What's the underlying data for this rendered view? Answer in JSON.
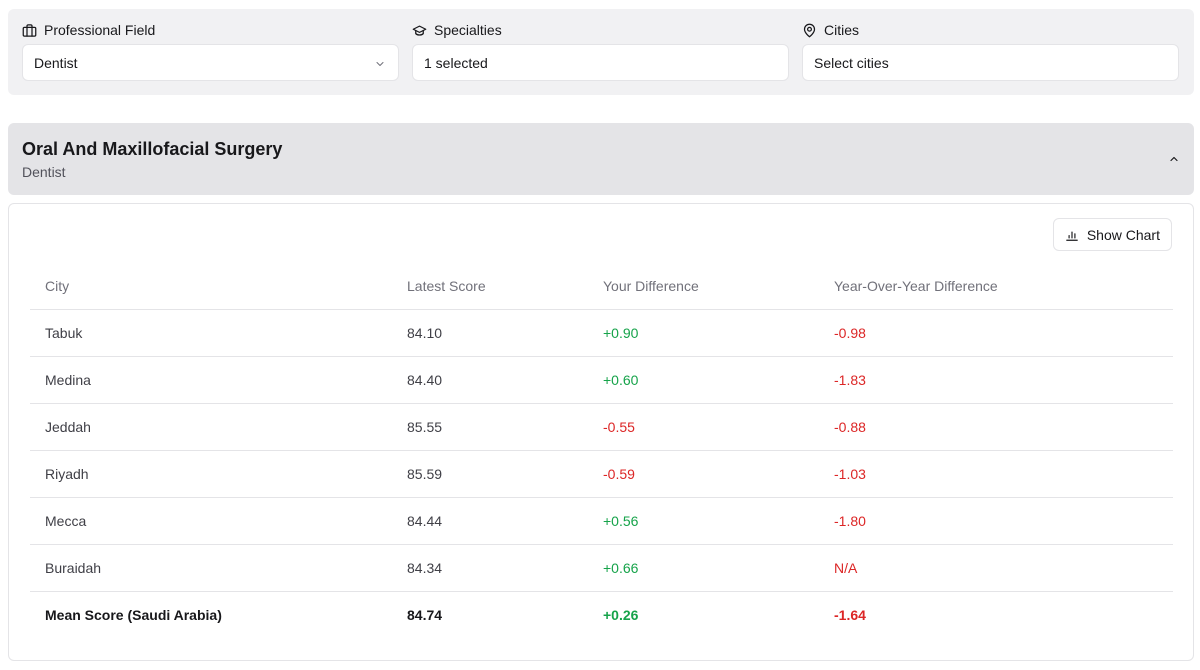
{
  "filters": {
    "professional_field": {
      "label": "Professional Field",
      "value": "Dentist",
      "icon": "briefcase-icon"
    },
    "specialties": {
      "label": "Specialties",
      "value": "1 selected",
      "icon": "graduation-cap-icon"
    },
    "cities": {
      "label": "Cities",
      "placeholder": "Select cities",
      "icon": "map-pin-icon"
    }
  },
  "section": {
    "title": "Oral And Maxillofacial Surgery",
    "subtitle": "Dentist",
    "collapse_icon": "chevron-up-icon"
  },
  "chart_button": {
    "label": "Show Chart",
    "icon": "bar-chart-icon"
  },
  "table": {
    "columns": [
      "City",
      "Latest Score",
      "Your Difference",
      "Year-Over-Year Difference"
    ],
    "rows": [
      {
        "city": "Tabuk",
        "score": "84.10",
        "diff": "+0.90",
        "yoy": "-0.98"
      },
      {
        "city": "Medina",
        "score": "84.40",
        "diff": "+0.60",
        "yoy": "-1.83"
      },
      {
        "city": "Jeddah",
        "score": "85.55",
        "diff": "-0.55",
        "yoy": "-0.88"
      },
      {
        "city": "Riyadh",
        "score": "85.59",
        "diff": "-0.59",
        "yoy": "-1.03"
      },
      {
        "city": "Mecca",
        "score": "84.44",
        "diff": "+0.56",
        "yoy": "-1.80"
      },
      {
        "city": "Buraidah",
        "score": "84.34",
        "diff": "+0.66",
        "yoy": "N/A"
      }
    ],
    "mean": {
      "city": "Mean Score (Saudi Arabia)",
      "score": "84.74",
      "diff": "+0.26",
      "yoy": "-1.64"
    }
  },
  "colors": {
    "positive": "#16a34a",
    "negative": "#dc2626",
    "panel_bg": "#f1f1f3",
    "header_bg": "#e4e4e7"
  }
}
